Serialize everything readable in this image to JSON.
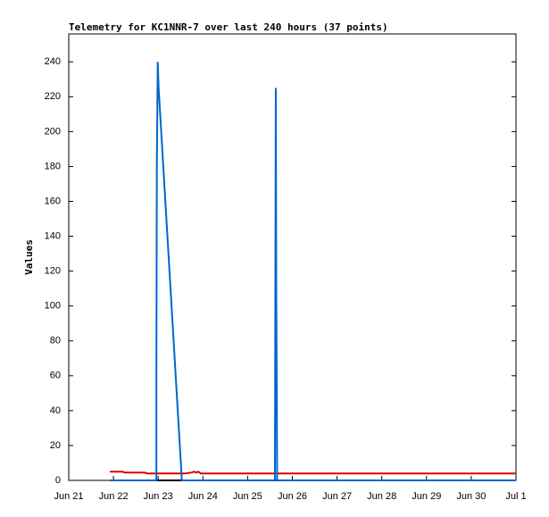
{
  "chart_data": {
    "type": "line",
    "title": "Telemetry for KC1NNR-7 over last 240 hours (37 points)",
    "ylabel": "Values",
    "xlim": [
      0,
      10
    ],
    "xticks": [
      {
        "value": 0,
        "label": "Jun 21"
      },
      {
        "value": 1,
        "label": "Jun 22"
      },
      {
        "value": 2,
        "label": "Jun 23"
      },
      {
        "value": 3,
        "label": "Jun 24"
      },
      {
        "value": 4,
        "label": "Jun 25"
      },
      {
        "value": 5,
        "label": "Jun 26"
      },
      {
        "value": 6,
        "label": "Jun 27"
      },
      {
        "value": 7,
        "label": "Jun 28"
      },
      {
        "value": 8,
        "label": "Jun 29"
      },
      {
        "value": 9,
        "label": "Jun 30"
      },
      {
        "value": 10,
        "label": "Jul 1"
      }
    ],
    "ylim": [
      0,
      256
    ],
    "yticks": [
      0,
      20,
      40,
      60,
      80,
      100,
      120,
      140,
      160,
      180,
      200,
      220,
      240
    ],
    "series": [
      {
        "color": "#000000",
        "x": [
          0.92,
          10
        ],
        "values": [
          0,
          0
        ]
      },
      {
        "color": "#dd0000",
        "x": [
          0.92,
          1.2,
          1.25,
          1.7,
          1.75,
          2.6,
          2.75,
          2.8,
          2.85,
          2.9,
          2.95,
          10
        ],
        "values": [
          5,
          5,
          4.5,
          4.5,
          4,
          4,
          4.5,
          5,
          4.5,
          5,
          4,
          4
        ]
      },
      {
        "color": "#0066cc",
        "x": [
          0.92,
          1.96,
          1.96,
          1.97,
          1.99,
          2.01,
          2.53,
          4.61,
          4.62,
          4.63,
          4.64,
          4.66,
          10
        ],
        "values": [
          0,
          0,
          60,
          180,
          240,
          225,
          0,
          0,
          112,
          225,
          112,
          0,
          0
        ]
      }
    ]
  }
}
